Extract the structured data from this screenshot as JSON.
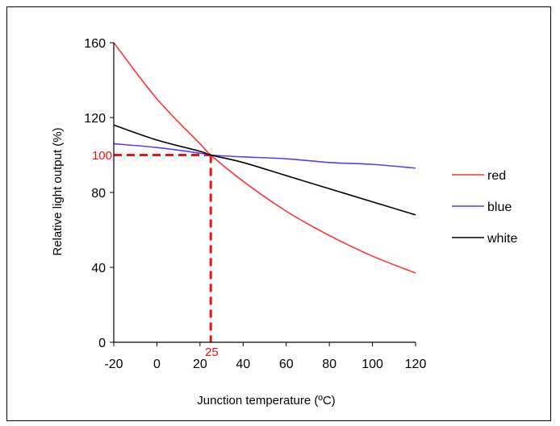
{
  "chart_data": {
    "type": "line",
    "title": "",
    "xlabel": "Junction temperature (ºC)",
    "ylabel": "Relative light output (%)",
    "xlim": [
      -20,
      120
    ],
    "ylim": [
      0,
      160
    ],
    "x_ticks": [
      "-20",
      "0",
      "20",
      "40",
      "60",
      "80",
      "100",
      "120"
    ],
    "y_ticks": [
      "0",
      "40",
      "80",
      "120",
      "160"
    ],
    "grid": false,
    "legend_position": "right",
    "x": [
      -20,
      0,
      20,
      25,
      40,
      60,
      80,
      100,
      120
    ],
    "series": [
      {
        "name": "red",
        "color": "#ff3333",
        "values": [
          160,
          130,
          106,
          100,
          86,
          70,
          57,
          46,
          37
        ]
      },
      {
        "name": "blue",
        "color": "#5b3df0",
        "values": [
          106,
          104,
          101,
          100,
          99,
          98,
          96,
          95,
          93
        ]
      },
      {
        "name": "white",
        "color": "#000000",
        "values": [
          116,
          108,
          102,
          100,
          96,
          89,
          82,
          75,
          68
        ]
      }
    ],
    "reference": {
      "x": 25,
      "y": 100,
      "x_label": "25",
      "y_label": "100",
      "color": "#ee1111"
    }
  }
}
